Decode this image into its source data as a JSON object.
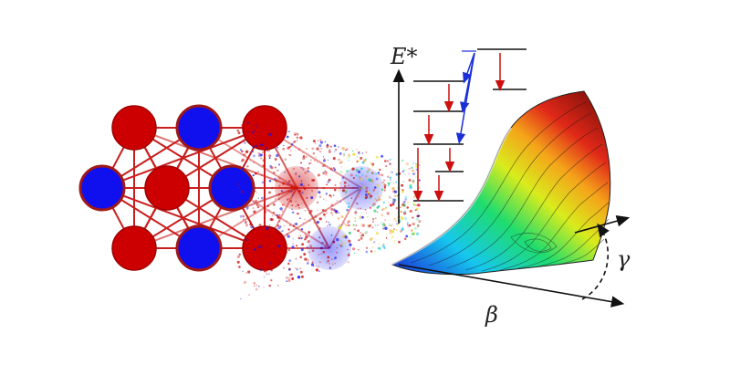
{
  "labels": {
    "energy": "E*",
    "beta": "β",
    "gamma": "γ"
  },
  "colors": {
    "node_red": "#cc0000",
    "node_blue": "#1010ee",
    "edge": "#c81e1e",
    "arrow_red": "#cc1010",
    "arrow_blue": "#1a2fd6",
    "axis": "#111111"
  },
  "network": {
    "rows": [
      [
        "red",
        "blue",
        "red"
      ],
      [
        "blue",
        "red",
        "blue",
        "red",
        "blue"
      ],
      [
        "red",
        "blue",
        "red",
        "blue"
      ]
    ]
  }
}
